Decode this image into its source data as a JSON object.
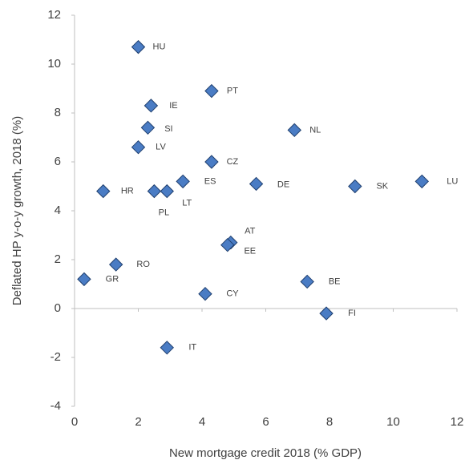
{
  "chart_data": {
    "type": "scatter",
    "x_label": "New mortgage credit 2018 (% GDP)",
    "y_label": "Deflated HP y-o-y growth, 2018 (%)",
    "labels": [
      "HU",
      "PT",
      "IE",
      "SI",
      "NL",
      "LV",
      "CZ",
      "ES",
      "DE",
      "SK",
      "LU",
      "HR",
      "PL",
      "LT",
      "AT",
      "EE",
      "RO",
      "GR",
      "BE",
      "CY",
      "FI",
      "IT"
    ],
    "x": [
      2.0,
      4.3,
      2.4,
      2.3,
      6.9,
      2.0,
      4.3,
      3.4,
      5.7,
      8.8,
      10.9,
      0.9,
      2.5,
      2.9,
      4.9,
      4.8,
      1.3,
      0.3,
      7.3,
      4.1,
      7.9,
      2.9
    ],
    "values": [
      10.7,
      8.9,
      8.3,
      7.4,
      7.3,
      6.6,
      6.0,
      5.2,
      5.1,
      5.0,
      5.2,
      4.8,
      4.8,
      4.8,
      2.7,
      2.6,
      1.8,
      1.2,
      1.1,
      0.6,
      -0.2,
      -1.6
    ],
    "color": "#4a7cc4",
    "xlim": [
      0,
      12
    ],
    "xticks": [
      0,
      2,
      4,
      6,
      8,
      10,
      12
    ],
    "ylim": [
      -4,
      12
    ],
    "yticks": [
      -4,
      -2,
      0,
      2,
      4,
      6,
      8,
      10,
      12
    ],
    "grid": false
  }
}
